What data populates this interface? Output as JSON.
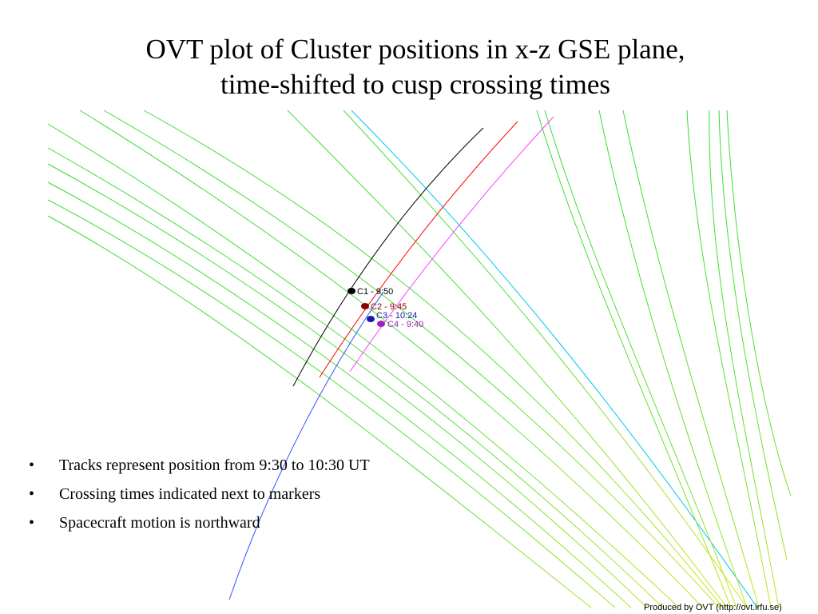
{
  "title": {
    "line1": "OVT plot of Cluster positions in x-z GSE plane,",
    "line2": "time-shifted to cusp crossing times"
  },
  "markers": [
    {
      "label": "C1 - 9:50",
      "color": "#000000",
      "track_color": "#000000"
    },
    {
      "label": "C2 - 9:45",
      "color": "#8b0000",
      "track_color": "#ff0000"
    },
    {
      "label": "C3 - 10:24",
      "color": "#1a1aa0",
      "track_color": "#3050ff"
    },
    {
      "label": "C4 - 9:40",
      "color": "#a020c0",
      "track_color": "#ff40ff"
    }
  ],
  "field_line_colors": {
    "green": "#33dd33",
    "yellow_green": "#b5e61d",
    "cyan": "#00c8e8"
  },
  "bullets": [
    "Tracks represent position from 9:30 to 10:30 UT",
    "Crossing times indicated next to markers",
    "Spacecraft motion is northward"
  ],
  "bullet_symbol": "•",
  "credit": "Produced by OVT (http://ovt.irfu.se)"
}
